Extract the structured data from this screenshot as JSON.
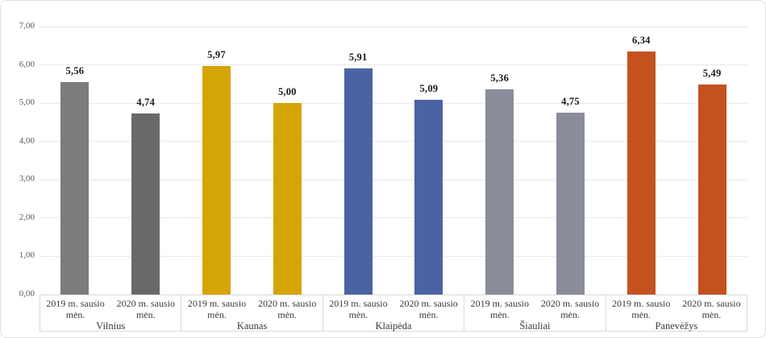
{
  "chart_data": {
    "type": "bar",
    "title": "",
    "xlabel": "",
    "ylabel": "",
    "grid": true,
    "legend": "none",
    "y_axis": {
      "min": 0,
      "max": 7,
      "step": 1,
      "tick_labels": [
        "0,00",
        "1,00",
        "2,00",
        "3,00",
        "4,00",
        "5,00",
        "6,00",
        "7,00"
      ]
    },
    "categories": [
      "Vilnius",
      "Kaunas",
      "Klaipėda",
      "Šiauliai",
      "Panevėžys"
    ],
    "series": [
      {
        "name": "2019 m. sausio mėn.",
        "values": [
          5.56,
          5.97,
          5.91,
          5.36,
          6.34
        ]
      },
      {
        "name": "2020 m. sausio mėn.",
        "values": [
          4.74,
          5.0,
          5.09,
          4.75,
          5.49
        ]
      }
    ],
    "value_labels": [
      [
        "5,56",
        "4,74"
      ],
      [
        "5,97",
        "5,00"
      ],
      [
        "5,91",
        "5,09"
      ],
      [
        "5,36",
        "4,75"
      ],
      [
        "6,34",
        "5,49"
      ]
    ],
    "group_colors": [
      [
        "#7C7C7C",
        "#696969"
      ],
      [
        "#D5A405",
        "#D5A405"
      ],
      [
        "#4A63A2",
        "#4A63A2"
      ],
      [
        "#8A8C99",
        "#8A8C99"
      ],
      [
        "#C4521F",
        "#C4521F"
      ]
    ]
  },
  "colors": {
    "background": "#FFFFFF",
    "border": "#E2E2E2",
    "gridline": "#E9E9E9",
    "axis_line": "#D9D9D9",
    "tick_text": "#595959",
    "value_text": "#1A1A1A",
    "category_text": "#3B3B3B"
  }
}
